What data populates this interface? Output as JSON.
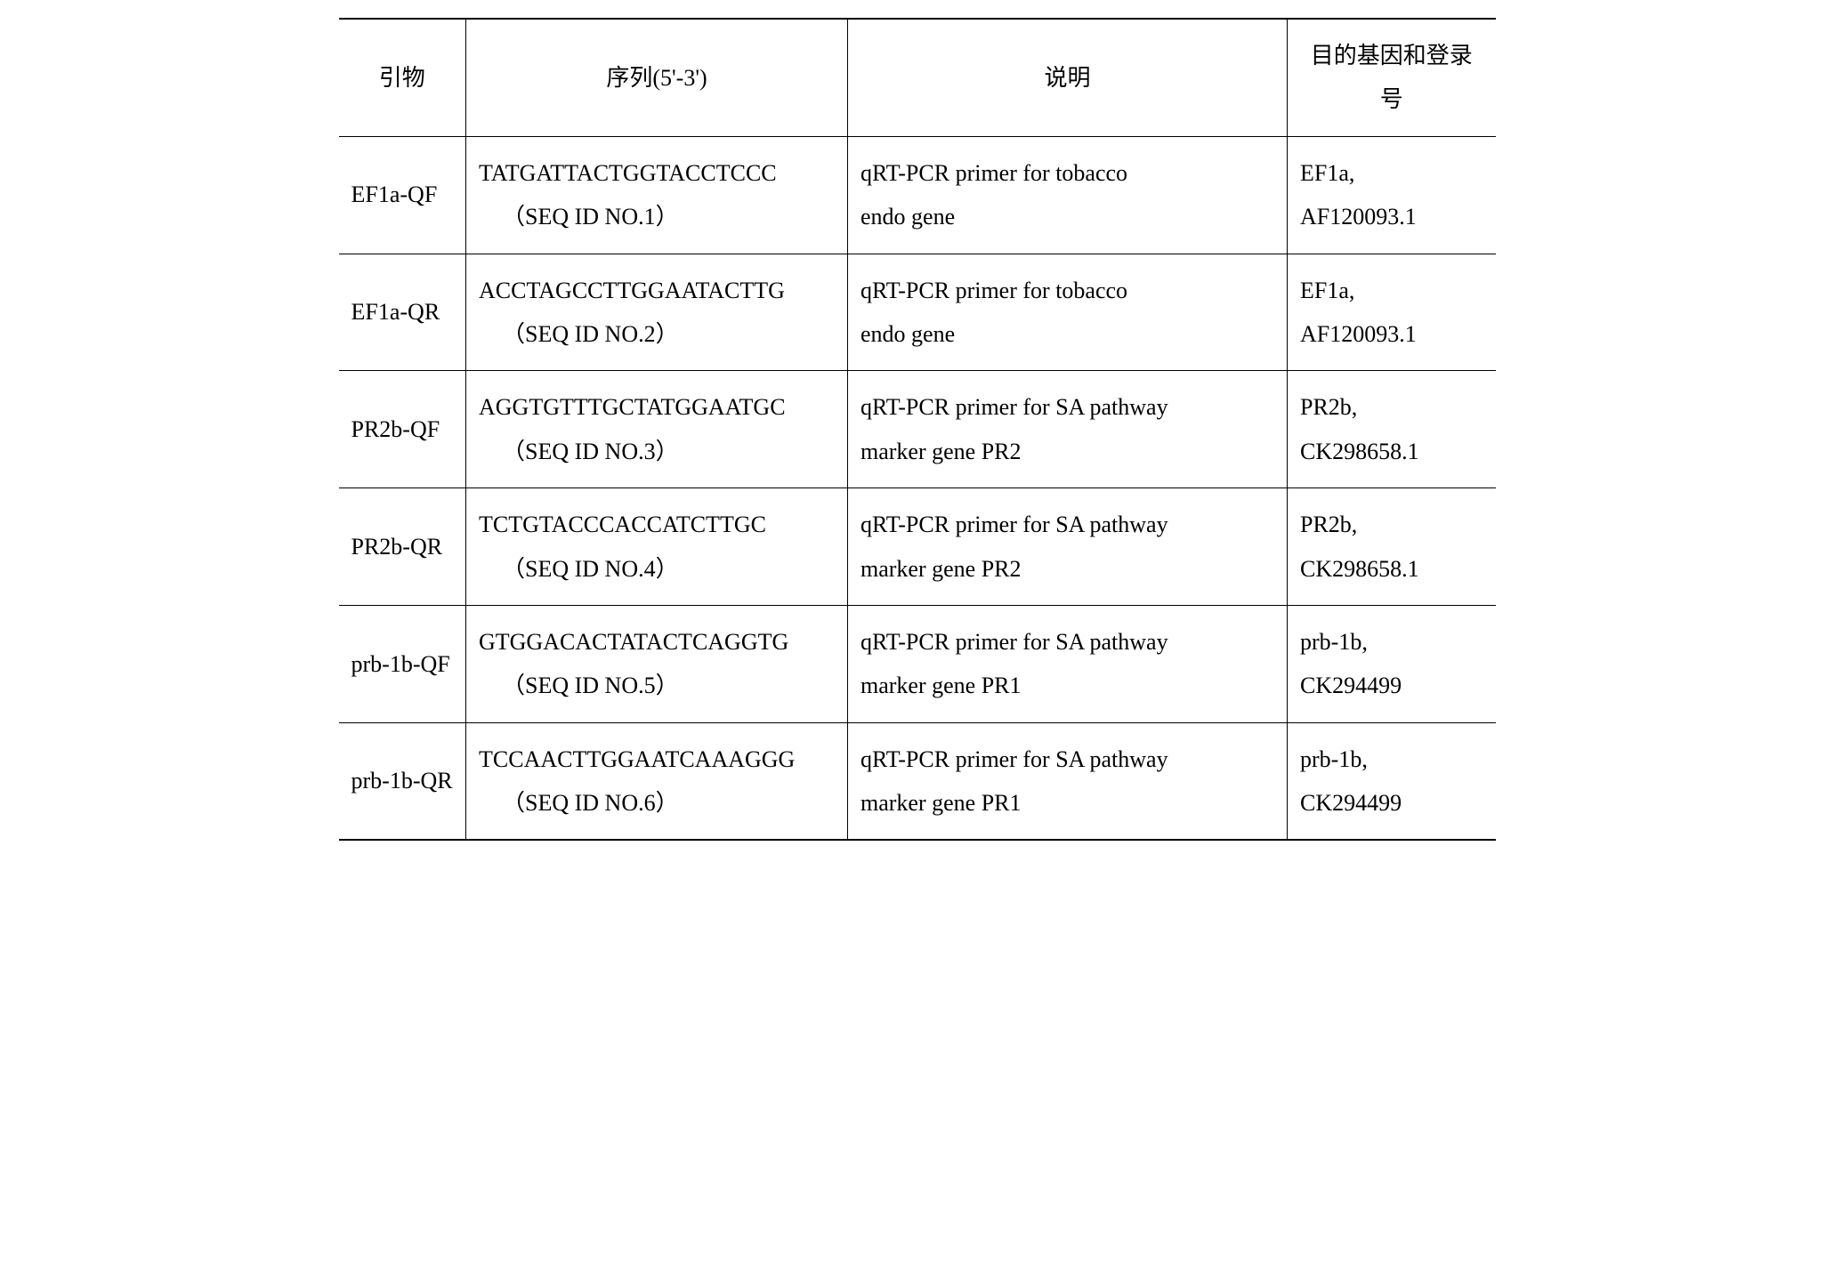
{
  "table": {
    "headers": {
      "primer": "引物",
      "sequence": "序列(5'-3')",
      "description": "说明",
      "gene": "目的基因和登录号"
    },
    "rows": [
      {
        "primer": "EF1a-QF",
        "seq_main": "TATGATTACTGGTACCTCCC",
        "seq_id": "（SEQ ID NO.1）",
        "desc_line1": "qRT-PCR primer for tobacco",
        "desc_line2": "endo gene",
        "gene_line1": "EF1a,",
        "gene_line2": "AF120093.1"
      },
      {
        "primer": "EF1a-QR",
        "seq_main": "ACCTAGCCTTGGAATACTTG",
        "seq_id": "（SEQ ID NO.2）",
        "desc_line1": "qRT-PCR primer for tobacco",
        "desc_line2": "endo gene",
        "gene_line1": "EF1a,",
        "gene_line2": "AF120093.1"
      },
      {
        "primer": "PR2b-QF",
        "seq_main": "AGGTGTTTGCTATGGAATGC",
        "seq_id": "（SEQ ID NO.3）",
        "desc_line1": "qRT-PCR primer for SA pathway",
        "desc_line2": "marker gene PR2",
        "gene_line1": "PR2b,",
        "gene_line2": "CK298658.1"
      },
      {
        "primer": "PR2b-QR",
        "seq_main": "TCTGTACCCACCATCTTGC",
        "seq_id": "（SEQ ID NO.4）",
        "desc_line1": "qRT-PCR primer for SA pathway",
        "desc_line2": "marker gene PR2",
        "gene_line1": "PR2b,",
        "gene_line2": "CK298658.1"
      },
      {
        "primer": "prb-1b-QF",
        "seq_main": "GTGGACACTATACTCAGGTG",
        "seq_id": "（SEQ ID NO.5）",
        "desc_line1": "qRT-PCR primer for SA pathway",
        "desc_line2": "marker gene PR1",
        "gene_line1": "prb-1b,",
        "gene_line2": "CK294499"
      },
      {
        "primer": "prb-1b-QR",
        "seq_main": "TCCAACTTGGAATCAAAGGG",
        "seq_id": "（SEQ ID NO.6）",
        "desc_line1": "qRT-PCR primer for SA pathway",
        "desc_line2": "marker gene PR1",
        "gene_line1": "prb-1b,",
        "gene_line2": "CK294499"
      }
    ]
  }
}
